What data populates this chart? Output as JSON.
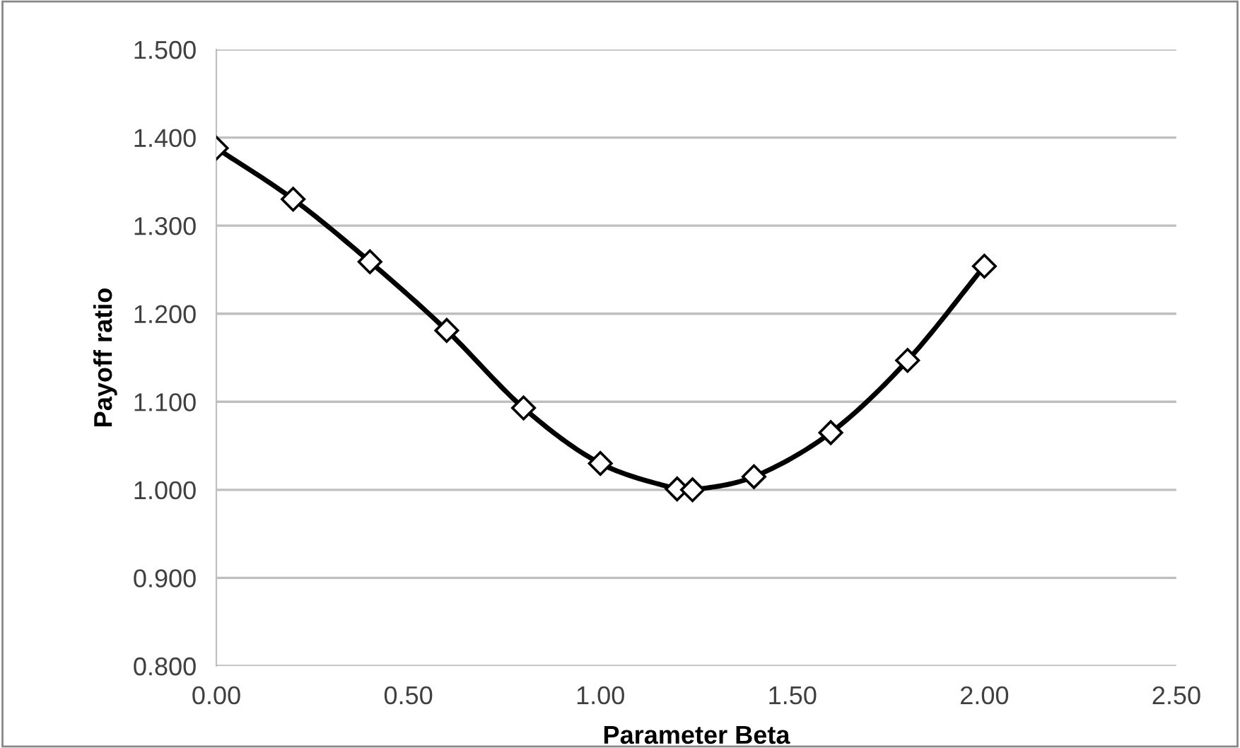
{
  "chart_data": {
    "type": "line",
    "xlabel": "Parameter Beta",
    "ylabel": "Payoff ratio",
    "x": [
      0,
      0.2,
      0.4,
      0.6,
      0.8,
      1.0,
      1.2,
      1.24,
      1.4,
      1.6,
      1.8,
      2.0
    ],
    "series": [
      {
        "color": "#000000",
        "values": [
          1.388,
          1.33,
          1.259,
          1.181,
          1.093,
          1.03,
          1.001,
          1.0,
          1.015,
          1.065,
          1.147,
          1.254
        ]
      }
    ],
    "xlim": [
      0,
      2.5
    ],
    "xticks": [
      {
        "value": 0,
        "label": "0.00"
      },
      {
        "value": 0.5,
        "label": "0.50"
      },
      {
        "value": 1.0,
        "label": "1.00"
      },
      {
        "value": 1.5,
        "label": "1.50"
      },
      {
        "value": 2.0,
        "label": "2.00"
      },
      {
        "value": 2.5,
        "label": "2.50"
      }
    ],
    "ylim": [
      0.8,
      1.5
    ],
    "yticks": [
      {
        "value": 0.8,
        "label": "0.800"
      },
      {
        "value": 0.9,
        "label": "0.900"
      },
      {
        "value": 1.0,
        "label": "1.000"
      },
      {
        "value": 1.1,
        "label": "1.100"
      },
      {
        "value": 1.2,
        "label": "1.200"
      },
      {
        "value": 1.3,
        "label": "1.300"
      },
      {
        "value": 1.4,
        "label": "1.400"
      },
      {
        "value": 1.5,
        "label": "1.500"
      }
    ],
    "grid": "y",
    "marker": "diamond",
    "line_style": "solid"
  }
}
